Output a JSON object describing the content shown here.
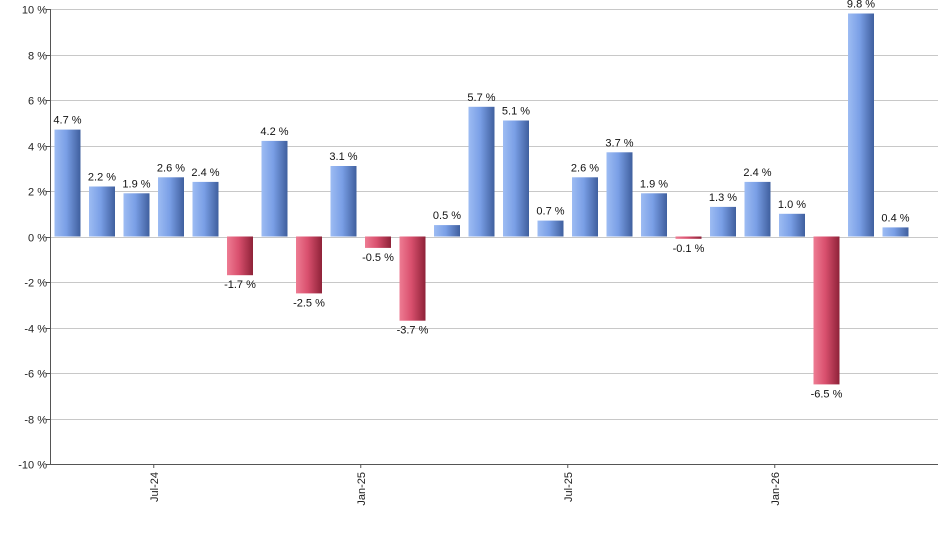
{
  "chart_data": {
    "type": "bar",
    "title": "",
    "xlabel": "",
    "ylabel": "",
    "ylim": [
      -10,
      10
    ],
    "y_ticks": [
      10,
      8,
      6,
      4,
      2,
      0,
      -2,
      -4,
      -6,
      -8,
      -10
    ],
    "y_tick_labels": [
      "10 %",
      "8 %",
      "6 %",
      "4 %",
      "2 %",
      "0 %",
      "-2 %",
      "-4 %",
      "-6 %",
      "-8 %",
      "-10 %"
    ],
    "x_tick_labels": [
      {
        "label": "Jul-24",
        "index": 2.5
      },
      {
        "label": "Jan-25",
        "index": 8.5
      },
      {
        "label": "Jul-25",
        "index": 14.5
      },
      {
        "label": "Jan-26",
        "index": 20.5
      }
    ],
    "values": [
      4.7,
      2.2,
      1.9,
      2.6,
      2.4,
      -1.7,
      4.2,
      -2.5,
      3.1,
      -0.5,
      -3.7,
      0.5,
      5.7,
      5.1,
      0.7,
      2.6,
      3.7,
      1.9,
      -0.1,
      1.3,
      2.4,
      1.0,
      -6.5,
      9.8,
      0.4
    ],
    "labels": [
      "4.7 %",
      "2.2 %",
      "1.9 %",
      "2.6 %",
      "2.4 %",
      "-1.7 %",
      "4.2 %",
      "-2.5 %",
      "3.1 %",
      "-0.5 %",
      "-3.7 %",
      "0.5 %",
      "5.7 %",
      "5.1 %",
      "0.7 %",
      "2.6 %",
      "3.7 %",
      "1.9 %",
      "-0.1 %",
      "1.3 %",
      "2.4 %",
      "1.0 %",
      "-6.5 %",
      "9.8 %",
      "0.4 %"
    ],
    "grid": true,
    "colors": {
      "positive": "#7a9fe6",
      "positive_dark": "#3f5f9e",
      "negative": "#d9506e",
      "negative_dark": "#8e2238"
    }
  }
}
